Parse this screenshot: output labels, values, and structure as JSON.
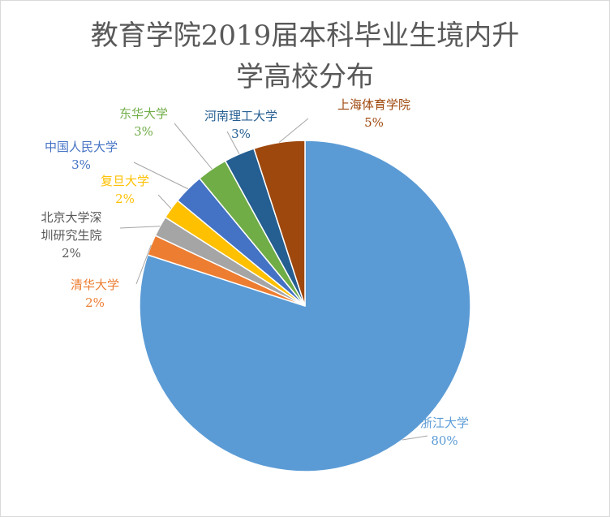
{
  "chart_data": {
    "type": "pie",
    "title_lines": [
      "教育学院2019届本科毕业生境内升",
      "学高校分布"
    ],
    "categories": [
      "浙江大学",
      "清华大学",
      "北京大学深圳研究生院",
      "复旦大学",
      "中国人民大学",
      "东华大学",
      "河南理工大学",
      "上海体育学院"
    ],
    "label_lines": [
      [
        "浙江大学"
      ],
      [
        "清华大学"
      ],
      [
        "北京大学深",
        "圳研究生院"
      ],
      [
        "复旦大学"
      ],
      [
        "中国人民大学"
      ],
      [
        "东华大学"
      ],
      [
        "河南理工大学"
      ],
      [
        "上海体育学院"
      ]
    ],
    "values": [
      80,
      2,
      2,
      2,
      3,
      3,
      3,
      5
    ],
    "percent_labels": [
      "80%",
      "2%",
      "2%",
      "2%",
      "3%",
      "3%",
      "3%",
      "5%"
    ],
    "colors": [
      "#5B9BD5",
      "#ED7D31",
      "#A5A5A5",
      "#FFC000",
      "#4472C4",
      "#70AD47",
      "#255E91",
      "#9E480E"
    ],
    "legend": "none"
  }
}
